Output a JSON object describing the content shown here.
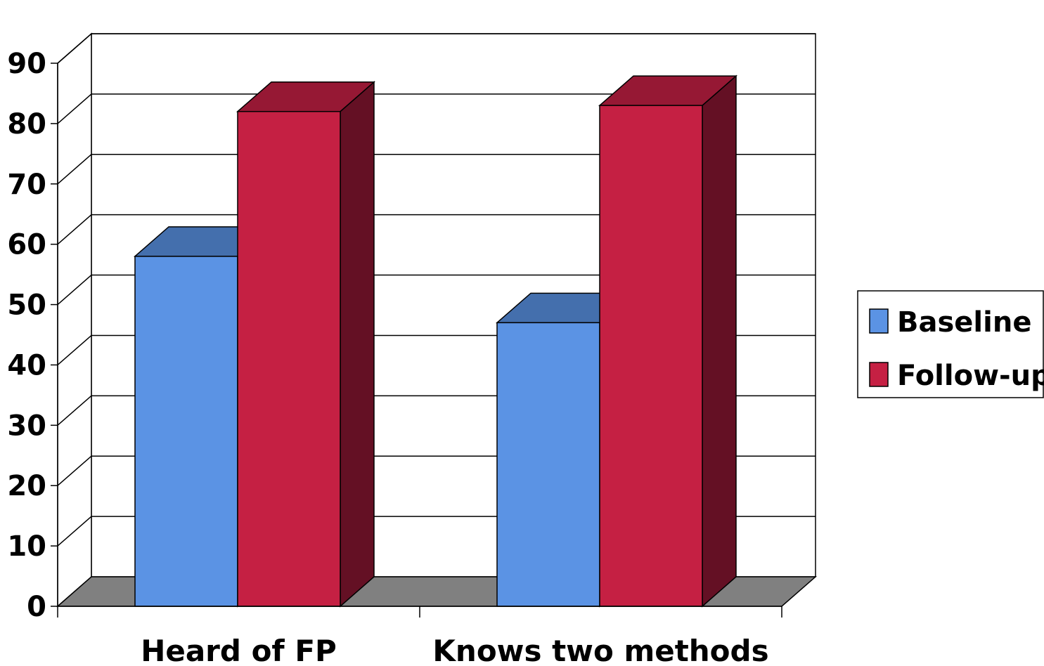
{
  "chart_data": {
    "type": "bar",
    "style": "3d-clustered-column",
    "categories": [
      "Heard of FP",
      "Knows two methods"
    ],
    "series": [
      {
        "name": "Baseline",
        "values": [
          58,
          47
        ],
        "color": "#5b93e4",
        "top_color": "#446fad"
      },
      {
        "name": "Follow-up",
        "values": [
          82,
          83
        ],
        "color": "#c52043",
        "top_color": "#961834",
        "side_color": "#641024"
      }
    ],
    "title": "",
    "xlabel": "",
    "ylabel": "",
    "ylim": [
      0,
      90
    ],
    "yticks": [
      0,
      10,
      20,
      30,
      40,
      50,
      60,
      70,
      80,
      90
    ],
    "grid": true,
    "floor_color": "#808080",
    "legend": {
      "position": "right"
    }
  }
}
